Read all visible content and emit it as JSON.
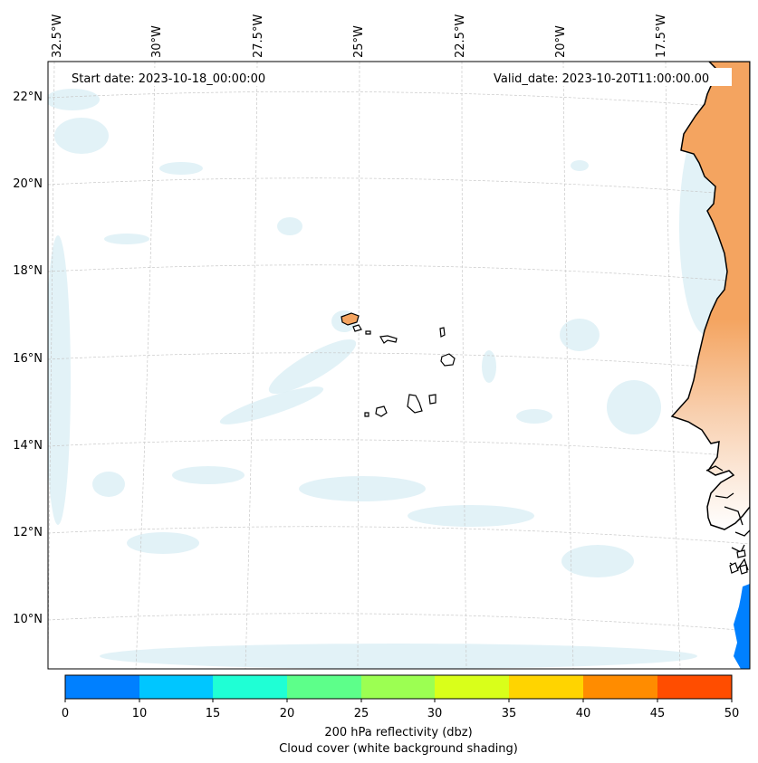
{
  "map": {
    "start_date_label": "Start date: 2023-10-18_00:00:00",
    "valid_date_label": "Valid_date: 2023-10-20T11:00:00.00",
    "lon_labels": [
      "32.5°W",
      "30°W",
      "27.5°W",
      "25°W",
      "22.5°W",
      "20°W",
      "17.5°W"
    ],
    "lat_labels": [
      "22°N",
      "20°N",
      "18°N",
      "16°N",
      "14°N",
      "12°N",
      "10°N"
    ],
    "land_color": "#f4a460",
    "cloud_color": "#bfe3ee",
    "reflectivity_color": "#0080ff"
  },
  "colorbar": {
    "ticks": [
      "0",
      "10",
      "15",
      "20",
      "25",
      "30",
      "35",
      "40",
      "45",
      "50"
    ],
    "colors": [
      "#0080ff",
      "#00c6ff",
      "#1fffd5",
      "#5dff8a",
      "#9cff52",
      "#d9ff1a",
      "#ffd400",
      "#ff8c00",
      "#ff4d00"
    ],
    "label_line1": "200 hPa reflectivity (dbz)",
    "label_line2": "Cloud cover (white background shading)"
  }
}
